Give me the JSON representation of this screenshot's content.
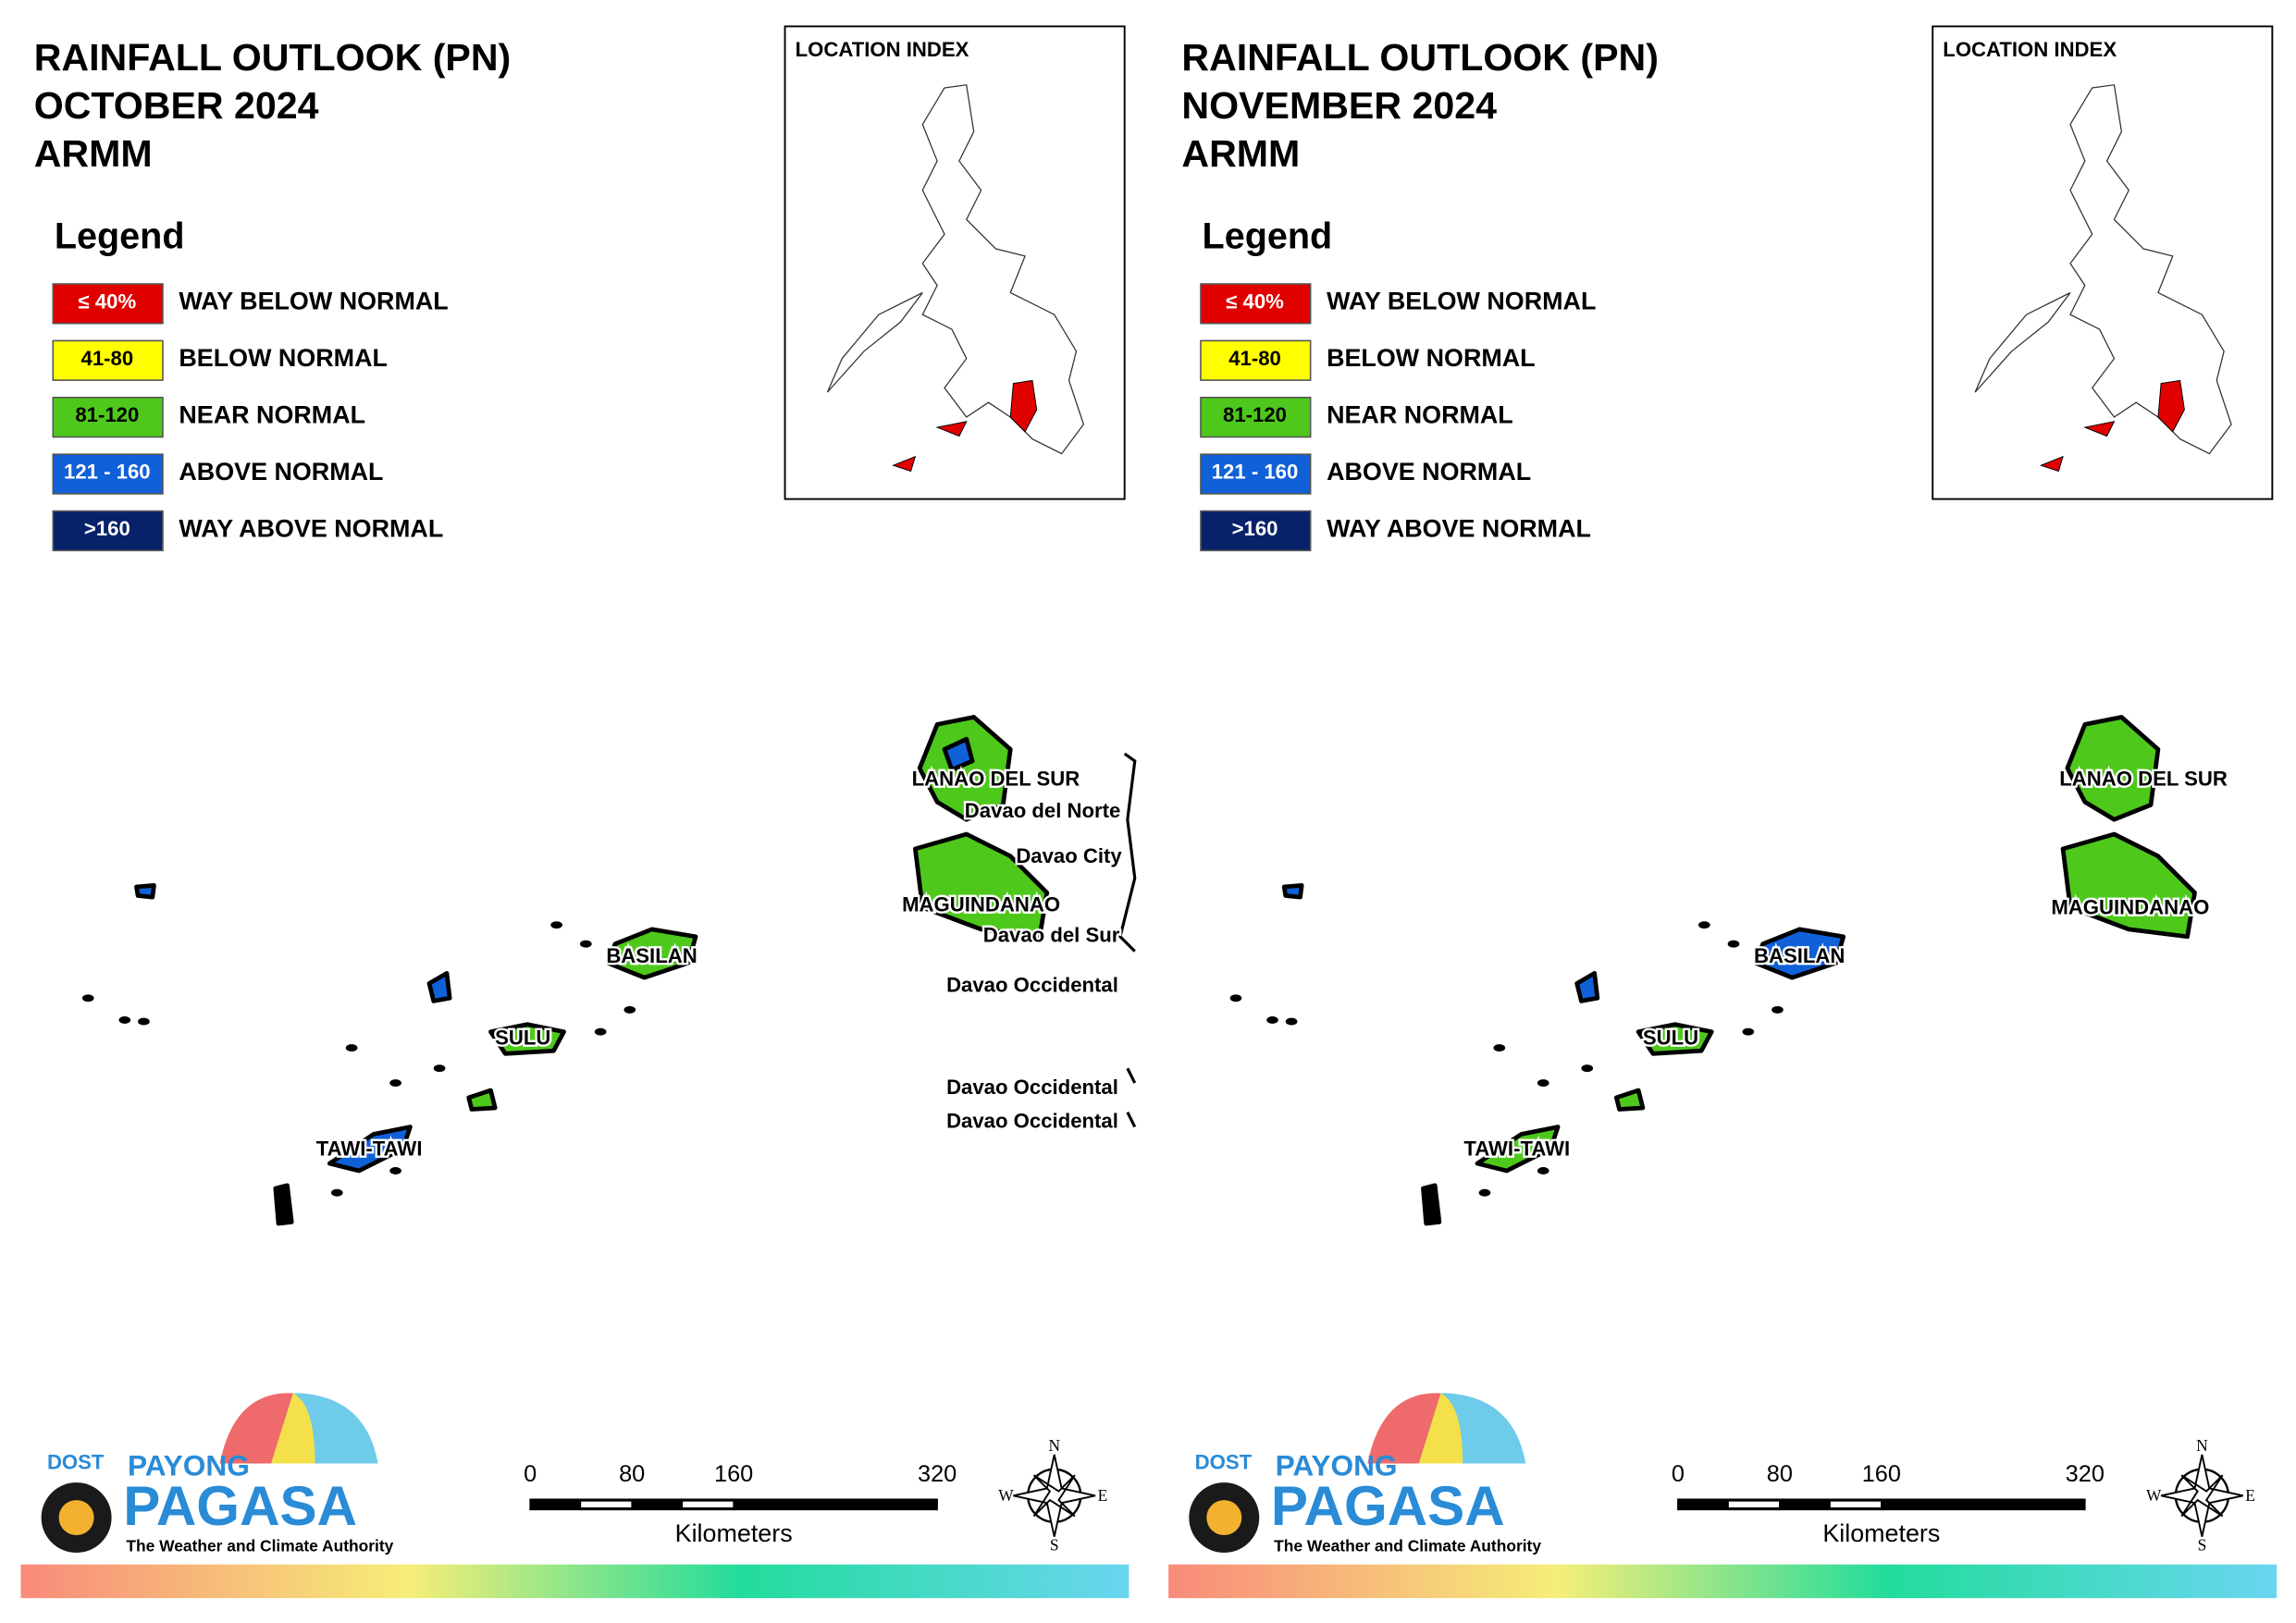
{
  "panels": [
    {
      "title": [
        "RAINFALL OUTLOOK (PN)",
        "OCTOBER 2024",
        "ARMM"
      ],
      "legend": {
        "title": "Legend",
        "items": [
          {
            "range": "≤ 40%",
            "label": "WAY BELOW NORMAL",
            "color": "#e00000",
            "text_color": "#ffffff"
          },
          {
            "range": "41-80",
            "label": "BELOW NORMAL",
            "color": "#ffff00",
            "text_color": "#000000"
          },
          {
            "range": "81-120",
            "label": "NEAR NORMAL",
            "color": "#4fc81c",
            "text_color": "#000000"
          },
          {
            "range": "121 - 160",
            "label": "ABOVE NORMAL",
            "color": "#1060d8",
            "text_color": "#ffffff"
          },
          {
            "range": ">160",
            "label": "WAY ABOVE NORMAL",
            "color": "#08226a",
            "text_color": "#ffffff"
          }
        ]
      },
      "location_index": "LOCATION INDEX",
      "map_labels": [
        "LANAO DEL SUR",
        "Davao del Norte",
        "Davao City",
        "MAGUINDANAO",
        "Davao del Sur",
        "Davao Occidental",
        "Davao Occidental",
        "Davao Occidental",
        "BASILAN",
        "SULU",
        "TAWI-TAWI"
      ],
      "scale": {
        "ticks": [
          0,
          80,
          160,
          320
        ],
        "unit": "Kilometers"
      },
      "compass": [
        "N",
        "E",
        "S",
        "W"
      ],
      "logo": {
        "agency": "DOST",
        "name1": "PAYONG",
        "name2": "PAGASA",
        "tagline": "The Weather and Climate Authority"
      }
    },
    {
      "title": [
        "RAINFALL OUTLOOK (PN)",
        "NOVEMBER 2024",
        "ARMM"
      ],
      "legend": {
        "title": "Legend",
        "items": [
          {
            "range": "≤ 40%",
            "label": "WAY BELOW NORMAL",
            "color": "#e00000",
            "text_color": "#ffffff"
          },
          {
            "range": "41-80",
            "label": "BELOW NORMAL",
            "color": "#ffff00",
            "text_color": "#000000"
          },
          {
            "range": "81-120",
            "label": "NEAR NORMAL",
            "color": "#4fc81c",
            "text_color": "#000000"
          },
          {
            "range": "121 - 160",
            "label": "ABOVE NORMAL",
            "color": "#1060d8",
            "text_color": "#ffffff"
          },
          {
            "range": ">160",
            "label": "WAY ABOVE NORMAL",
            "color": "#08226a",
            "text_color": "#ffffff"
          }
        ]
      },
      "location_index": "LOCATION INDEX",
      "map_labels": [
        "LANAO DEL SUR",
        "MAGUINDANAO",
        "BASILAN",
        "SULU",
        "TAWI-TAWI"
      ],
      "scale": {
        "ticks": [
          0,
          80,
          160,
          320
        ],
        "unit": "Kilometers"
      },
      "compass": [
        "N",
        "E",
        "S",
        "W"
      ],
      "logo": {
        "agency": "DOST",
        "name1": "PAYONG",
        "name2": "PAGASA",
        "tagline": "The Weather and Climate Authority"
      }
    }
  ]
}
